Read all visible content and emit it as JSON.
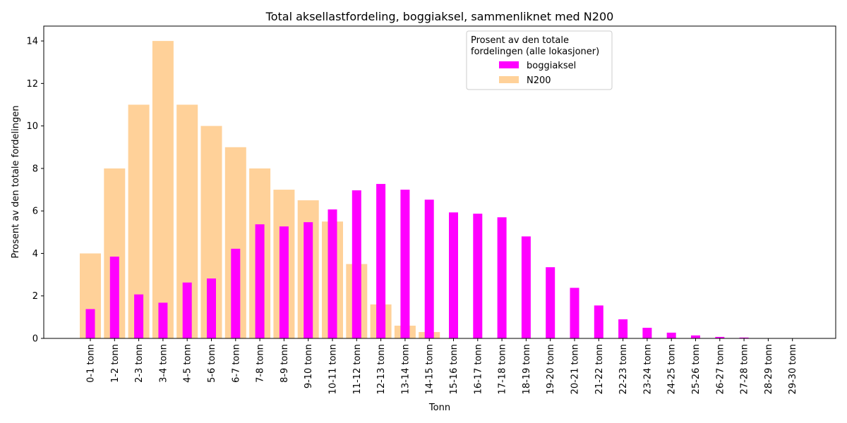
{
  "chart_data": {
    "type": "bar",
    "title": "Total aksellastfordeling, boggiaksel, sammenliknet med N200",
    "xlabel": "Tonn",
    "ylabel": "Prosent av den totale fordelingen",
    "ylim": [
      0,
      14.7
    ],
    "yticks": [
      0,
      2,
      4,
      6,
      8,
      10,
      12,
      14
    ],
    "grid": false,
    "legend": {
      "title_lines": [
        "Prosent av den totale",
        "fordelingen (alle lokasjoner)"
      ],
      "placement": "upper center",
      "entries": [
        "boggiaksel",
        "N200"
      ]
    },
    "categories": [
      "0-1 tonn",
      "1-2 tonn",
      "2-3 tonn",
      "3-4 tonn",
      "4-5 tonn",
      "5-6 tonn",
      "6-7 tonn",
      "7-8 tonn",
      "8-9 tonn",
      "9-10 tonn",
      "10-11 tonn",
      "11-12 tonn",
      "12-13 tonn",
      "13-14 tonn",
      "14-15 tonn",
      "15-16 tonn",
      "16-17 tonn",
      "17-18 tonn",
      "18-19 tonn",
      "19-20 tonn",
      "20-21 tonn",
      "21-22 tonn",
      "22-23 tonn",
      "23-24 tonn",
      "24-25 tonn",
      "25-26 tonn",
      "26-27 tonn",
      "27-28 tonn",
      "28-29 tonn",
      "29-30 tonn"
    ],
    "series": [
      {
        "name": "N200",
        "color": "#ffd199",
        "values": [
          4,
          8,
          11,
          14,
          11,
          10,
          9,
          8,
          7,
          6.5,
          5.5,
          3.5,
          1.6,
          0.6,
          0.3,
          0,
          0,
          0,
          0,
          0,
          0,
          0,
          0,
          0,
          0,
          0,
          0,
          0,
          0,
          0
        ]
      },
      {
        "name": "boggiaksel",
        "color": "#ff00ff",
        "values": [
          1.38,
          3.85,
          2.07,
          1.68,
          2.63,
          2.82,
          4.22,
          5.37,
          5.27,
          5.47,
          6.07,
          6.97,
          7.27,
          7.0,
          6.53,
          5.93,
          5.87,
          5.7,
          4.8,
          3.35,
          2.38,
          1.55,
          0.9,
          0.5,
          0.27,
          0.14,
          0.07,
          0.04,
          0.01,
          0.005
        ]
      }
    ]
  }
}
